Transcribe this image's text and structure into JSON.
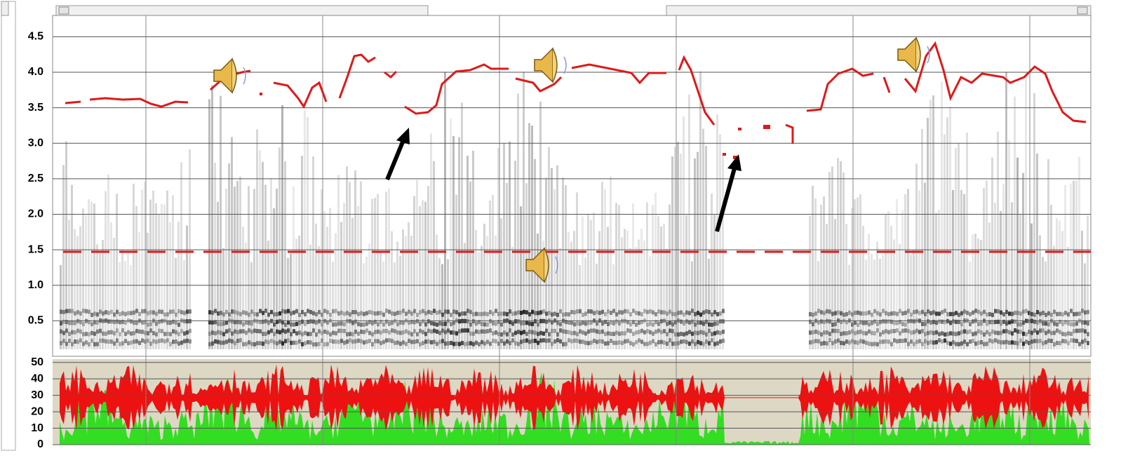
{
  "spectrogram": {
    "ylim": [
      0,
      4.8
    ],
    "yticks": [
      {
        "value": 4.5,
        "label": "4.5"
      },
      {
        "value": 4,
        "label": "4.0"
      },
      {
        "value": 3.5,
        "label": "3.5"
      },
      {
        "value": 3,
        "label": "3.0"
      },
      {
        "value": 2.5,
        "label": "2.5"
      },
      {
        "value": 2,
        "label": "2.0"
      },
      {
        "value": 1.5,
        "label": "1.5"
      },
      {
        "value": 1,
        "label": "1.0"
      },
      {
        "value": 0.5,
        "label": "0.5"
      }
    ]
  },
  "energy": {
    "ylim": [
      0,
      52
    ],
    "yticks": [
      50,
      40,
      30,
      20,
      10,
      0
    ]
  }
}
